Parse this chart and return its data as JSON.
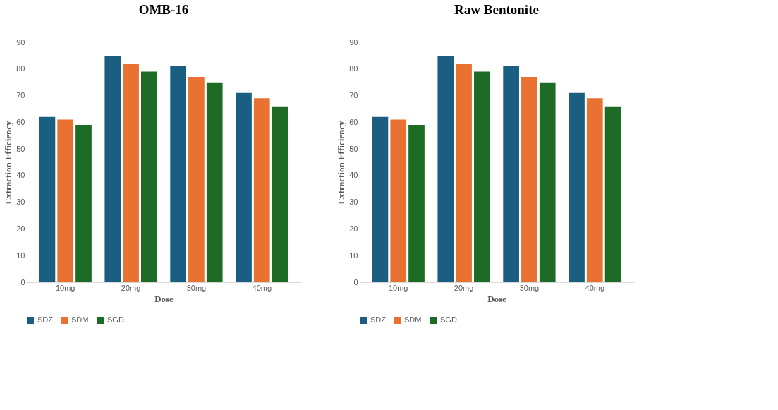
{
  "chart_data": [
    {
      "type": "bar",
      "title": "OMB-16",
      "xlabel": "Dose",
      "ylabel": "Extraction Efficiency",
      "categories": [
        "10mg",
        "20mg",
        "30mg",
        "40mg"
      ],
      "series": [
        {
          "name": "SDZ",
          "color": "#1a5e82",
          "values": [
            62,
            85,
            81,
            71
          ]
        },
        {
          "name": "SDM",
          "color": "#e97132",
          "values": [
            61,
            82,
            77,
            69
          ]
        },
        {
          "name": "SGD",
          "color": "#1d6b25",
          "values": [
            59,
            79,
            75,
            66
          ]
        }
      ],
      "ylim": [
        0,
        90
      ],
      "yticks": [
        0,
        10,
        20,
        30,
        40,
        50,
        60,
        70,
        80,
        90
      ],
      "grid": false,
      "legend": "bottom"
    },
    {
      "type": "bar",
      "title": "Raw Bentonite",
      "xlabel": "Dose",
      "ylabel": "Extraction Efficiency",
      "categories": [
        "10mg",
        "20mg",
        "30mg",
        "40mg"
      ],
      "series": [
        {
          "name": "SDZ",
          "color": "#1a5e82",
          "values": [
            62,
            85,
            81,
            71
          ]
        },
        {
          "name": "SDM",
          "color": "#e97132",
          "values": [
            61,
            82,
            77,
            69
          ]
        },
        {
          "name": "SGD",
          "color": "#1d6b25",
          "values": [
            59,
            79,
            75,
            66
          ]
        }
      ],
      "ylim": [
        0,
        90
      ],
      "yticks": [
        0,
        10,
        20,
        30,
        40,
        50,
        60,
        70,
        80,
        90
      ],
      "grid": false,
      "legend": "bottom"
    }
  ]
}
